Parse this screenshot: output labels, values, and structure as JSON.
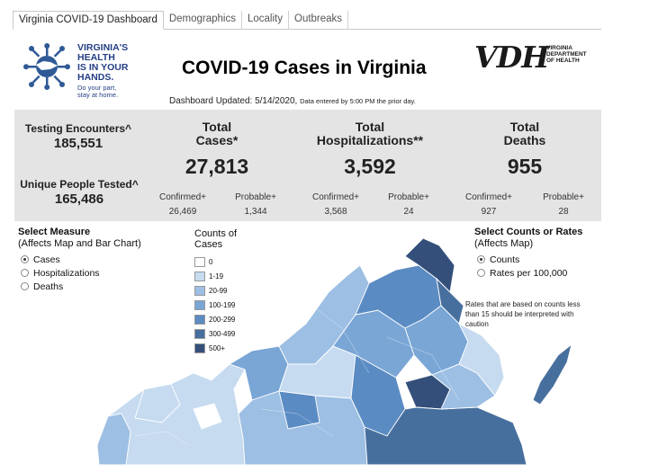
{
  "tabs": [
    {
      "label": "Virginia COVID-19 Dashboard",
      "active": true
    },
    {
      "label": "Demographics",
      "active": false
    },
    {
      "label": "Locality",
      "active": false
    },
    {
      "label": "Outbreaks",
      "active": false
    }
  ],
  "campaign_logo": {
    "line1": "VIRGINIA'S",
    "line2": "HEALTH",
    "line3": "IS IN YOUR",
    "line4": "HANDS.",
    "sub1": "Do your part,",
    "sub2": "stay at home."
  },
  "header": {
    "title": "COVID-19 Cases in Virginia",
    "updated": "Dashboard Updated: 5/14/2020,",
    "updated_note": "Data entered by 5:00 PM the prior day."
  },
  "vdh_logo": {
    "letters": "VDH",
    "line1": "VIRGINIA",
    "line2": "DEPARTMENT",
    "line3": "OF HEALTH"
  },
  "stats": {
    "testing_label": "Testing Encounters^",
    "testing_value": "185,551",
    "people_label": "Unique People Tested^",
    "people_value": "165,486",
    "cases": {
      "label1": "Total",
      "label2": "Cases*",
      "value": "27,813",
      "confirmed_label": "Confirmed+",
      "confirmed": "26,469",
      "probable_label": "Probable+",
      "probable": "1,344"
    },
    "hosp": {
      "label1": "Total",
      "label2": "Hospitalizations**",
      "value": "3,592",
      "confirmed_label": "Confirmed+",
      "confirmed": "3,568",
      "probable_label": "Probable+",
      "probable": "24"
    },
    "deaths": {
      "label1": "Total",
      "label2": "Deaths",
      "value": "955",
      "confirmed_label": "Confirmed+",
      "confirmed": "927",
      "probable_label": "Probable+",
      "probable": "28"
    }
  },
  "measure": {
    "title": "Select Measure",
    "subtitle": "(Affects Map and Bar Chart)",
    "options": [
      {
        "label": "Cases",
        "selected": true
      },
      {
        "label": "Hospitalizations",
        "selected": false
      },
      {
        "label": "Deaths",
        "selected": false
      }
    ]
  },
  "legend": {
    "title1": "Counts of",
    "title2": "Cases",
    "items": [
      {
        "label": "0",
        "color": "#ffffff"
      },
      {
        "label": "1-19",
        "color": "#c6dbf0"
      },
      {
        "label": "20-99",
        "color": "#9dbfe3"
      },
      {
        "label": "100-199",
        "color": "#7aa6d6"
      },
      {
        "label": "200-299",
        "color": "#5b8bc3"
      },
      {
        "label": "300-499",
        "color": "#476f9e"
      },
      {
        "label": "500+",
        "color": "#34507a"
      }
    ]
  },
  "counts_rates": {
    "title": "Select Counts or Rates",
    "subtitle": "(Affects Map)",
    "options": [
      {
        "label": "Counts",
        "selected": true
      },
      {
        "label": "Rates per 100,000",
        "selected": false
      }
    ],
    "note": "Rates that are based on counts less than 15 should be interpreted with caution"
  }
}
